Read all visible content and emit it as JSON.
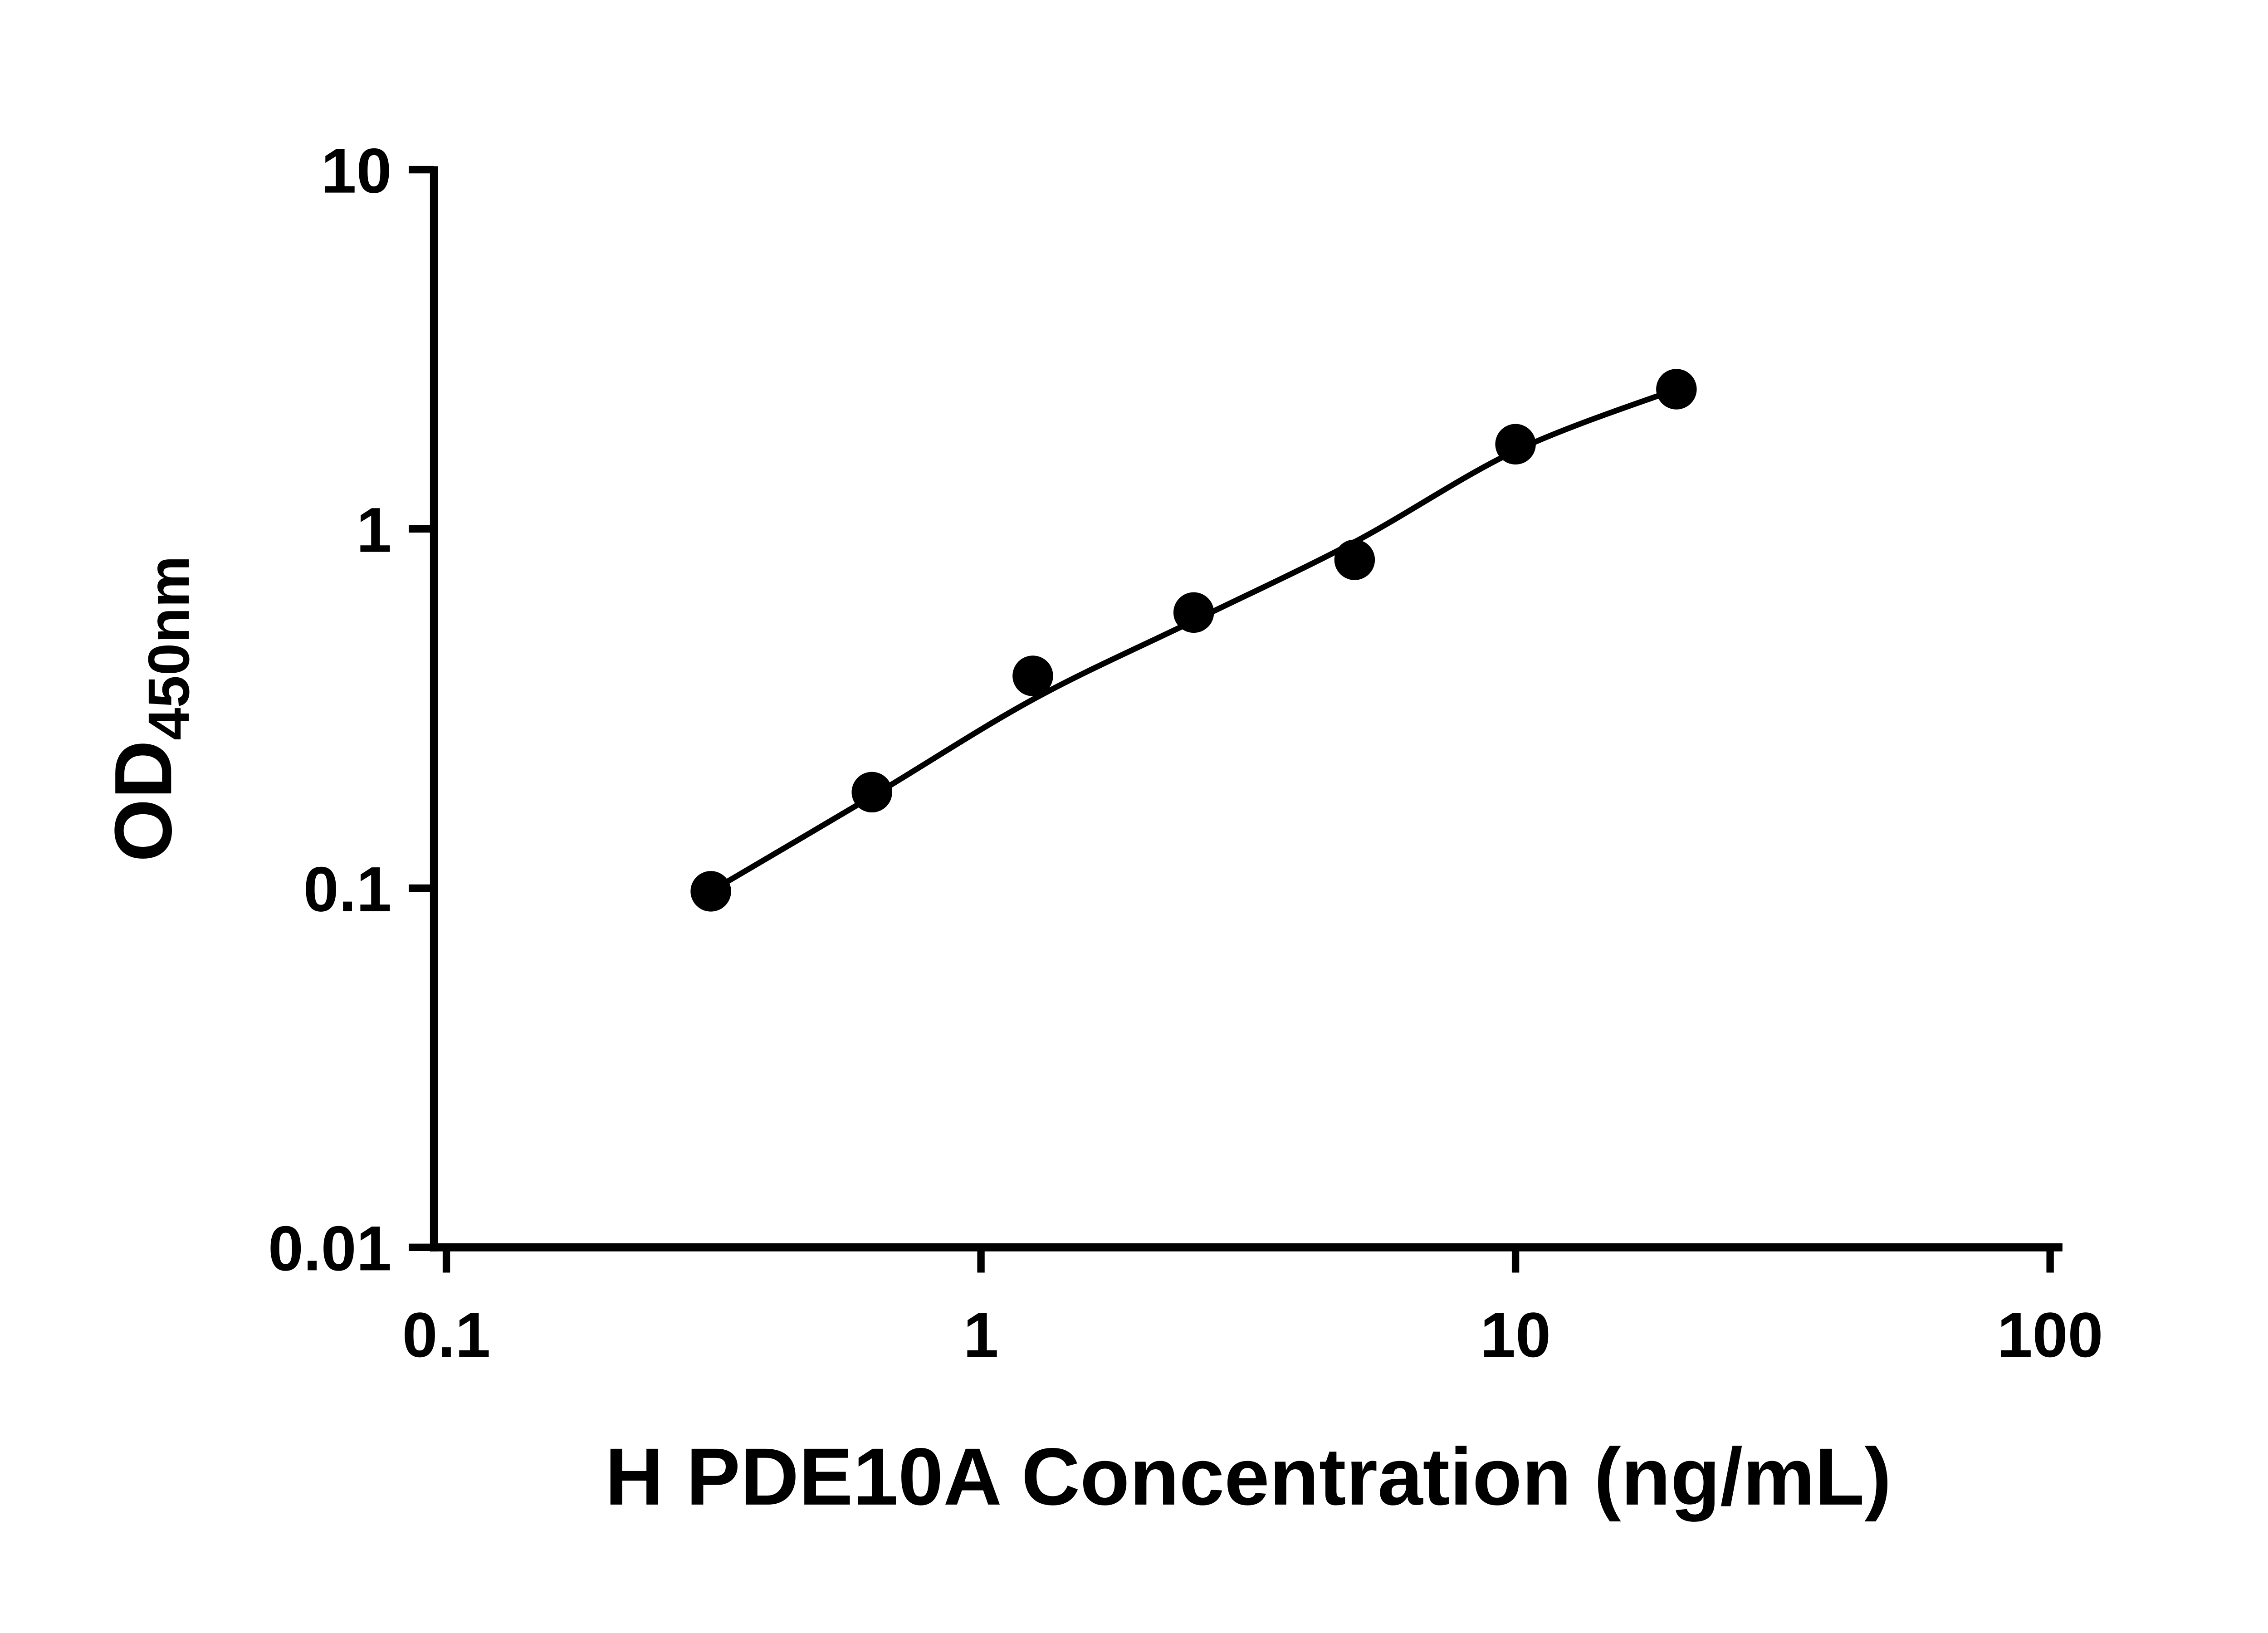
{
  "chart_data": {
    "type": "scatter",
    "title": "",
    "xlabel": "H PDE10A Concentration (ng/mL)",
    "ylabel": {
      "base": "OD",
      "subscript": "450nm"
    },
    "x_scale": "log10",
    "y_scale": "log10",
    "xlim": [
      0.1,
      100
    ],
    "ylim": [
      0.01,
      10
    ],
    "x_ticks": [
      {
        "value": 0.1,
        "label": "0.1"
      },
      {
        "value": 1,
        "label": "1"
      },
      {
        "value": 10,
        "label": "10"
      },
      {
        "value": 100,
        "label": "100"
      }
    ],
    "y_ticks": [
      {
        "value": 0.01,
        "label": "0.01"
      },
      {
        "value": 0.1,
        "label": "0.1"
      },
      {
        "value": 1,
        "label": "1"
      },
      {
        "value": 10,
        "label": "10"
      }
    ],
    "grid": false,
    "legend": "none",
    "axis_color": "#000000",
    "series": [
      {
        "marker": "circle",
        "marker_color": "#000000",
        "line_color": "#000000",
        "line_type": "smooth-fit",
        "points": [
          {
            "x": 0.3125,
            "y": 0.098
          },
          {
            "x": 0.625,
            "y": 0.185
          },
          {
            "x": 1.25,
            "y": 0.39
          },
          {
            "x": 2.5,
            "y": 0.585
          },
          {
            "x": 5,
            "y": 0.82
          },
          {
            "x": 10,
            "y": 1.72
          },
          {
            "x": 20,
            "y": 2.45
          }
        ],
        "fit_curve_points": [
          {
            "x": 0.3125,
            "y": 0.098
          },
          {
            "x": 0.625,
            "y": 0.18
          },
          {
            "x": 1.25,
            "y": 0.335
          },
          {
            "x": 2.5,
            "y": 0.555
          },
          {
            "x": 5,
            "y": 0.92
          },
          {
            "x": 10,
            "y": 1.65
          },
          {
            "x": 20,
            "y": 2.45
          }
        ]
      }
    ]
  }
}
